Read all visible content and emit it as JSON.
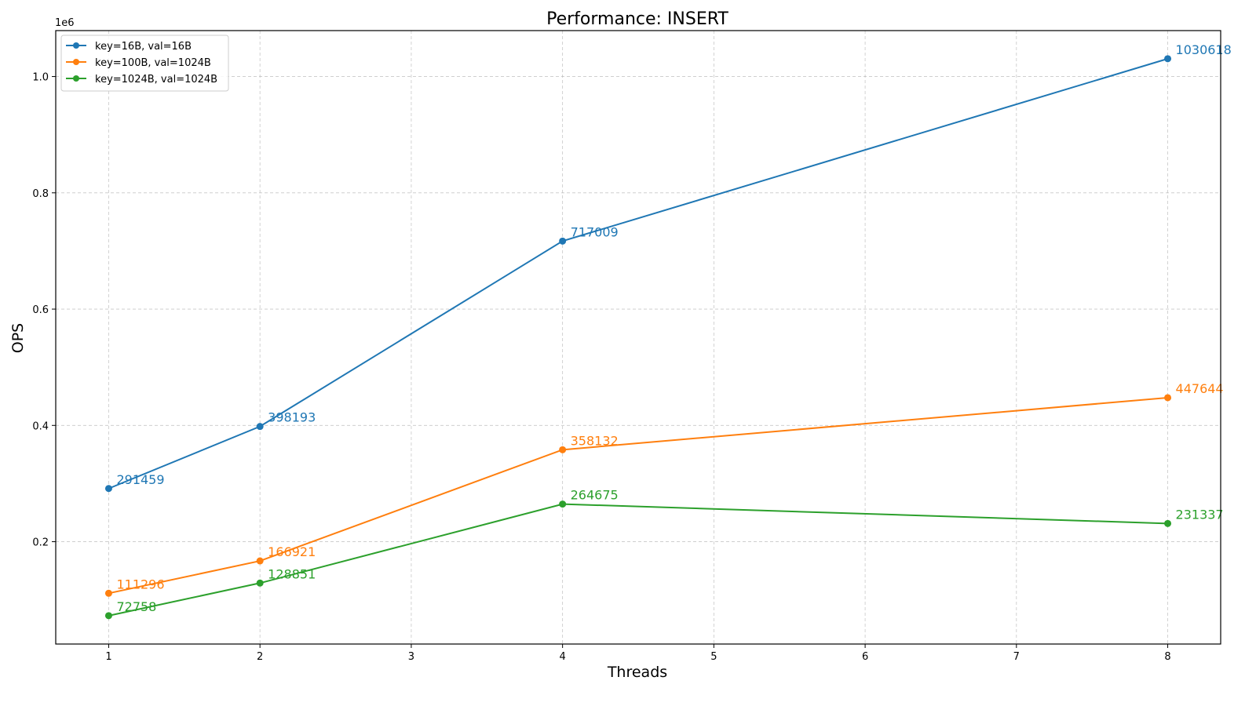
{
  "chart_data": {
    "type": "line",
    "title": "Performance: INSERT",
    "xlabel": "Threads",
    "ylabel": "OPS",
    "y_scale_text": "1e6",
    "x_ticks": [
      1,
      2,
      3,
      4,
      5,
      6,
      7,
      8
    ],
    "y_ticks": [
      0.2,
      0.4,
      0.6,
      0.8,
      1.0
    ],
    "y_tick_labels": [
      "0.2",
      "0.4",
      "0.6",
      "0.8",
      "1.0"
    ],
    "xlim": [
      0.65,
      8.35
    ],
    "ylim": [
      24000,
      1079000
    ],
    "grid": true,
    "legend_position": "top-left",
    "x": [
      1,
      2,
      4,
      8
    ],
    "series": [
      {
        "name": "key=16B, val=16B",
        "color": "#1f77b4",
        "values": [
          291459,
          398193,
          717009,
          1030618
        ]
      },
      {
        "name": "key=100B, val=1024B",
        "color": "#ff7f0e",
        "values": [
          111296,
          166921,
          358132,
          447644
        ]
      },
      {
        "name": "key=1024B, val=1024B",
        "color": "#2ca02c",
        "values": [
          72758,
          128851,
          264675,
          231337
        ]
      }
    ]
  }
}
